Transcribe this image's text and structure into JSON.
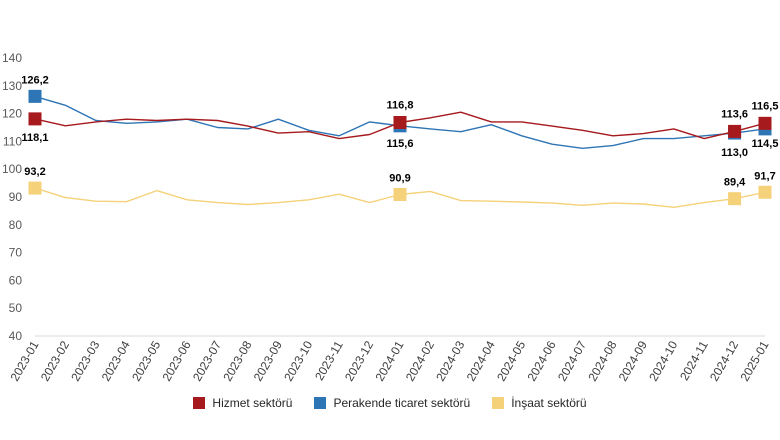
{
  "chart_data": {
    "type": "line",
    "categories": [
      "2023-01",
      "2023-02",
      "2023-03",
      "2023-04",
      "2023-05",
      "2023-06",
      "2023-07",
      "2023-08",
      "2023-09",
      "2023-10",
      "2023-11",
      "2023-12",
      "2024-01",
      "2024-02",
      "2024-03",
      "2024-04",
      "2024-05",
      "2024-06",
      "2024-07",
      "2024-08",
      "2024-09",
      "2024-10",
      "2024-11",
      "2024-12",
      "2025-01"
    ],
    "ylim": [
      40,
      140
    ],
    "yticks": [
      40,
      50,
      60,
      70,
      80,
      90,
      100,
      110,
      120,
      130,
      140
    ],
    "grid": false,
    "legend_position": "bottom",
    "series": [
      {
        "name": "Hizmet sektörü",
        "color": "#a6191d",
        "values": [
          118.1,
          115.6,
          117.0,
          118.0,
          117.5,
          118.0,
          117.5,
          115.5,
          113.0,
          113.5,
          111.0,
          112.5,
          116.8,
          118.5,
          120.5,
          117.0,
          117.0,
          115.5,
          114.0,
          112.0,
          112.8,
          114.5,
          111.0,
          113.6,
          116.5
        ],
        "labeled_points": [
          {
            "index": 0,
            "label": "118,1"
          },
          {
            "index": 12,
            "label": "116,8"
          },
          {
            "index": 23,
            "label": "113,6"
          },
          {
            "index": 24,
            "label": "116,5"
          }
        ]
      },
      {
        "name": "Perakende ticaret sektörü",
        "color": "#2e75b6",
        "values": [
          126.2,
          123.0,
          117.5,
          116.5,
          117.0,
          118.0,
          115.0,
          114.5,
          118.0,
          114.0,
          112.0,
          117.0,
          115.6,
          114.5,
          113.5,
          116.0,
          112.0,
          109.0,
          107.5,
          108.5,
          111.0,
          111.0,
          112.0,
          113.0,
          114.5
        ],
        "labeled_points": [
          {
            "index": 0,
            "label": "126,2"
          },
          {
            "index": 12,
            "label": "115,6"
          },
          {
            "index": 23,
            "label": "113,0"
          },
          {
            "index": 24,
            "label": "114,5"
          }
        ]
      },
      {
        "name": "İnşaat sektörü",
        "color": "#f5d27a",
        "values": [
          93.2,
          89.8,
          88.5,
          88.3,
          92.3,
          89.0,
          88.0,
          87.3,
          88.0,
          89.0,
          91.0,
          88.0,
          90.9,
          92.0,
          88.7,
          88.5,
          88.2,
          87.8,
          87.0,
          87.8,
          87.5,
          86.3,
          88.0,
          89.4,
          91.7
        ],
        "labeled_points": [
          {
            "index": 0,
            "label": "93,2"
          },
          {
            "index": 12,
            "label": "90,9"
          },
          {
            "index": 23,
            "label": "89,4"
          },
          {
            "index": 24,
            "label": "91,7"
          }
        ]
      }
    ]
  }
}
